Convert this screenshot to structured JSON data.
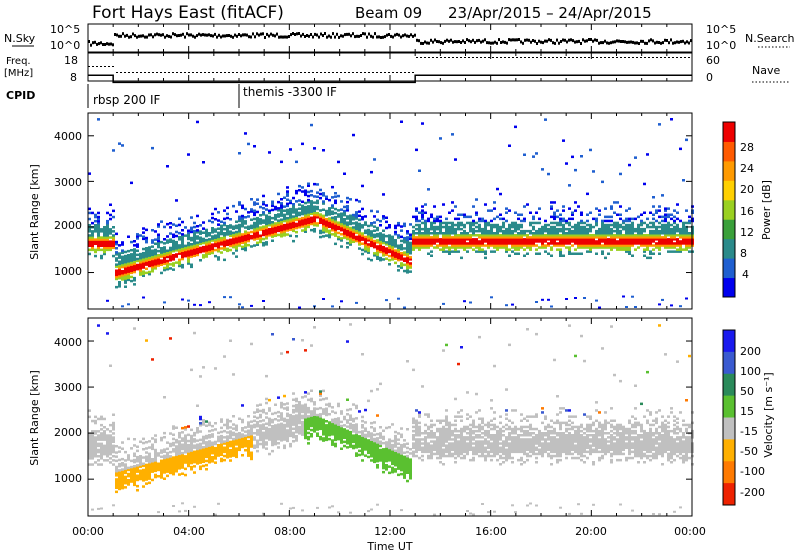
{
  "header": {
    "station": "Fort Hays East (fitACF)",
    "beam": "Beam 09",
    "dates": "23/Apr/2015 – 24/Apr/2015"
  },
  "top_panels": {
    "nsky_label": "N.Sky",
    "nsky_ticks": [
      "10^5",
      "10^0"
    ],
    "nsearch_label": "N.Search",
    "nsearch_ticks": [
      "10^5",
      "10^0"
    ],
    "freq_label_1": "Freq.",
    "freq_label_2": "[MHz]",
    "freq_ticks": [
      "18",
      "8"
    ],
    "nave_label": "Nave",
    "nave_ticks": [
      "60",
      "0"
    ],
    "freq_series": {
      "x_hours": [
        0,
        1,
        1,
        13,
        13,
        24
      ],
      "y_mhz": [
        10.8,
        10.8,
        8.2,
        8.2,
        10.8,
        10.8
      ]
    }
  },
  "cpid": {
    "label": "CPID",
    "modes": [
      {
        "label": "rbsp 200 IF",
        "start_hour": 0
      },
      {
        "label": "themis -3300 IF",
        "start_hour": 6
      }
    ]
  },
  "chart_data": [
    {
      "type": "heatmap",
      "ylabel": "Slant Range [km]",
      "ylim": [
        200,
        4500
      ],
      "yticks": [
        "1000",
        "2000",
        "3000",
        "4000"
      ],
      "xlim": [
        0,
        24
      ],
      "colorbar": {
        "label": "Power [dB]",
        "ticks": [
          "4",
          "8",
          "12",
          "16",
          "20",
          "24",
          "28"
        ],
        "colors": [
          "#0000ee",
          "#1f5fd0",
          "#2a8a8a",
          "#3aa03a",
          "#9ad020",
          "#ffd000",
          "#ff9a00",
          "#ff5a00",
          "#ee0000"
        ]
      }
    },
    {
      "type": "heatmap",
      "ylabel": "Slant Range [km]",
      "ylim": [
        200,
        4500
      ],
      "yticks": [
        "1000",
        "2000",
        "3000",
        "4000"
      ],
      "xlim": [
        0,
        24
      ],
      "colorbar": {
        "label": "Velocity [m s⁻¹]",
        "ticks": [
          "200",
          "100",
          "50",
          "15",
          "-15",
          "-50",
          "-100",
          "-200"
        ],
        "colors": [
          "#1a1aee",
          "#3a5ad0",
          "#2a8a5a",
          "#5ac030",
          "#c0c0c0",
          "#ffb000",
          "#ff7a00",
          "#ee2200"
        ]
      }
    }
  ],
  "xaxis": {
    "label": "Time UT",
    "ticks": [
      "00:00",
      "04:00",
      "08:00",
      "12:00",
      "16:00",
      "20:00",
      "00:00"
    ]
  }
}
